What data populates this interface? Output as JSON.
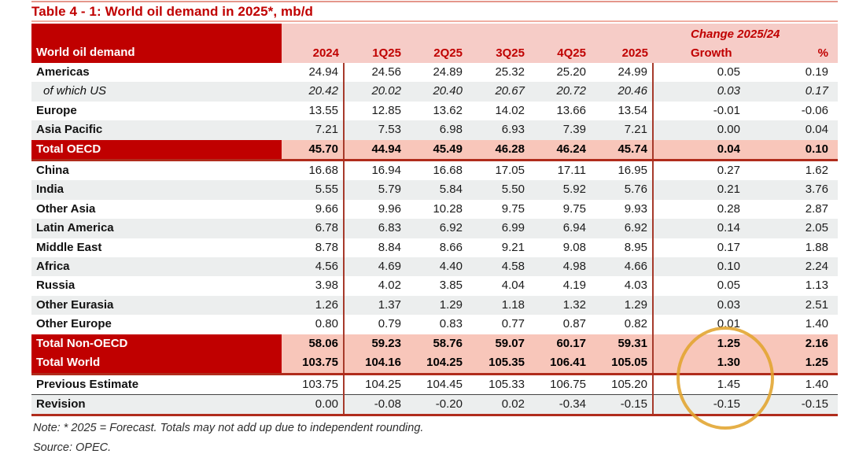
{
  "title": "Table 4 - 1: World oil demand in 2025*, mb/d",
  "header": {
    "label": "World oil demand",
    "change_group": "Change 2025/24",
    "columns": [
      "2024",
      "1Q25",
      "2Q25",
      "3Q25",
      "4Q25",
      "2025",
      "Growth",
      "%"
    ]
  },
  "rows": [
    {
      "label": "Americas",
      "kind": "region",
      "values": [
        "24.94",
        "24.56",
        "24.89",
        "25.32",
        "25.20",
        "24.99",
        "0.05",
        "0.19"
      ]
    },
    {
      "label": "of which US",
      "kind": "sub",
      "values": [
        "20.42",
        "20.02",
        "20.40",
        "20.67",
        "20.72",
        "20.46",
        "0.03",
        "0.17"
      ]
    },
    {
      "label": "Europe",
      "kind": "region",
      "values": [
        "13.55",
        "12.85",
        "13.62",
        "14.02",
        "13.66",
        "13.54",
        "-0.01",
        "-0.06"
      ]
    },
    {
      "label": "Asia Pacific",
      "kind": "region",
      "values": [
        "7.21",
        "7.53",
        "6.98",
        "6.93",
        "7.39",
        "7.21",
        "0.00",
        "0.04"
      ]
    },
    {
      "label": "Total OECD",
      "kind": "total",
      "values": [
        "45.70",
        "44.94",
        "45.49",
        "46.28",
        "46.24",
        "45.74",
        "0.04",
        "0.10"
      ]
    },
    {
      "label": "China",
      "kind": "region",
      "values": [
        "16.68",
        "16.94",
        "16.68",
        "17.05",
        "17.11",
        "16.95",
        "0.27",
        "1.62"
      ]
    },
    {
      "label": "India",
      "kind": "region",
      "values": [
        "5.55",
        "5.79",
        "5.84",
        "5.50",
        "5.92",
        "5.76",
        "0.21",
        "3.76"
      ]
    },
    {
      "label": "Other Asia",
      "kind": "region",
      "values": [
        "9.66",
        "9.96",
        "10.28",
        "9.75",
        "9.75",
        "9.93",
        "0.28",
        "2.87"
      ]
    },
    {
      "label": "Latin America",
      "kind": "region",
      "values": [
        "6.78",
        "6.83",
        "6.92",
        "6.99",
        "6.94",
        "6.92",
        "0.14",
        "2.05"
      ]
    },
    {
      "label": "Middle East",
      "kind": "region",
      "values": [
        "8.78",
        "8.84",
        "8.66",
        "9.21",
        "9.08",
        "8.95",
        "0.17",
        "1.88"
      ]
    },
    {
      "label": "Africa",
      "kind": "region",
      "values": [
        "4.56",
        "4.69",
        "4.40",
        "4.58",
        "4.98",
        "4.66",
        "0.10",
        "2.24"
      ]
    },
    {
      "label": "Russia",
      "kind": "region",
      "values": [
        "3.98",
        "4.02",
        "3.85",
        "4.04",
        "4.19",
        "4.03",
        "0.05",
        "1.13"
      ]
    },
    {
      "label": "Other Eurasia",
      "kind": "region",
      "values": [
        "1.26",
        "1.37",
        "1.29",
        "1.18",
        "1.32",
        "1.29",
        "0.03",
        "2.51"
      ]
    },
    {
      "label": "Other Europe",
      "kind": "region",
      "values": [
        "0.80",
        "0.79",
        "0.83",
        "0.77",
        "0.87",
        "0.82",
        "0.01",
        "1.40"
      ]
    },
    {
      "label": "Total Non-OECD",
      "kind": "total",
      "values": [
        "58.06",
        "59.23",
        "58.76",
        "59.07",
        "60.17",
        "59.31",
        "1.25",
        "2.16"
      ]
    },
    {
      "label": "Total World",
      "kind": "total",
      "values": [
        "103.75",
        "104.16",
        "104.25",
        "105.35",
        "106.41",
        "105.05",
        "1.30",
        "1.25"
      ]
    },
    {
      "label": "Previous Estimate",
      "kind": "estimate",
      "values": [
        "103.75",
        "104.25",
        "104.45",
        "105.33",
        "106.75",
        "105.20",
        "1.45",
        "1.40"
      ]
    },
    {
      "label": "Revision",
      "kind": "estimate",
      "values": [
        "0.00",
        "-0.08",
        "-0.20",
        "0.02",
        "-0.34",
        "-0.15",
        "-0.15",
        "-0.15"
      ]
    }
  ],
  "footer": {
    "note": "Note: * 2025 = Forecast. Totals may not add up due to independent rounding.",
    "source": "Source: OPEC."
  },
  "annotation": {
    "shape": "ellipse-highlight",
    "color": "#e1a42e",
    "highlights": "Growth column values for Total Non-OECD, Total World, Previous Estimate and Revision"
  },
  "colors": {
    "accent_dark_red": "#c00000",
    "header_pink": "#f6ccc7",
    "total_row_pink": "#f8c6ba",
    "stripe_gray": "#eceeee",
    "rule_red": "#a63a2b",
    "circle_gold": "#e1a42e"
  }
}
